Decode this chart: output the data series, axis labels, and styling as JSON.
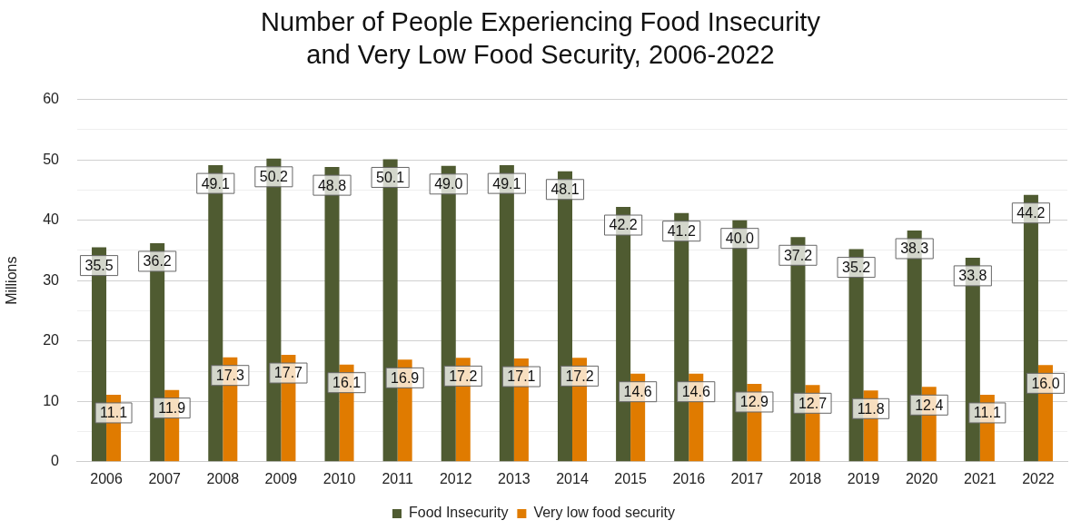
{
  "chart_data": {
    "type": "bar",
    "title": "Number of People Experiencing Food Insecurity and Very Low Food Security, 2006-2022",
    "ylabel": "Millions",
    "categories": [
      "2006",
      "2007",
      "2008",
      "2009",
      "2010",
      "2011",
      "2012",
      "2013",
      "2014",
      "2015",
      "2016",
      "2017",
      "2018",
      "2019",
      "2020",
      "2021",
      "2022"
    ],
    "series": [
      {
        "name": "Food Insecurity",
        "color": "#4f5b31",
        "values": [
          35.5,
          36.2,
          49.1,
          50.2,
          48.8,
          50.1,
          49.0,
          49.1,
          48.1,
          42.2,
          41.2,
          40.0,
          37.2,
          35.2,
          38.3,
          33.8,
          44.2
        ],
        "value_labels": [
          "35.5",
          "36.2",
          "49.1",
          "50.2",
          "48.8",
          "50.1",
          "49.0",
          "49.1",
          "48.1",
          "42.2",
          "41.2",
          "40.0",
          "37.2",
          "35.2",
          "38.3",
          "33.8",
          "44.2"
        ]
      },
      {
        "name": "Very low food security",
        "color": "#e07b00",
        "values": [
          11.1,
          11.9,
          17.3,
          17.7,
          16.1,
          16.9,
          17.2,
          17.1,
          17.2,
          14.6,
          14.6,
          12.9,
          12.7,
          11.8,
          12.4,
          11.1,
          16.0
        ],
        "value_labels": [
          "11.1",
          "11.9",
          "17.3",
          "17.7",
          "16.1",
          "16.9",
          "17.2",
          "17.1",
          "17.2",
          "14.6",
          "14.6",
          "12.9",
          "12.7",
          "11.8",
          "12.4",
          "11.1",
          "16.0"
        ]
      }
    ],
    "ylim": [
      0,
      60
    ],
    "yticks": [
      0,
      {
        "value": 5,
        "label": null
      },
      10,
      {
        "value": 15,
        "label": null
      },
      20,
      {
        "value": 25,
        "label": null
      },
      30,
      {
        "value": 35,
        "label": null
      },
      40,
      {
        "value": 45,
        "label": null
      },
      50,
      {
        "value": 55,
        "label": null
      },
      60
    ],
    "grid": "y",
    "legend": "bottom"
  }
}
